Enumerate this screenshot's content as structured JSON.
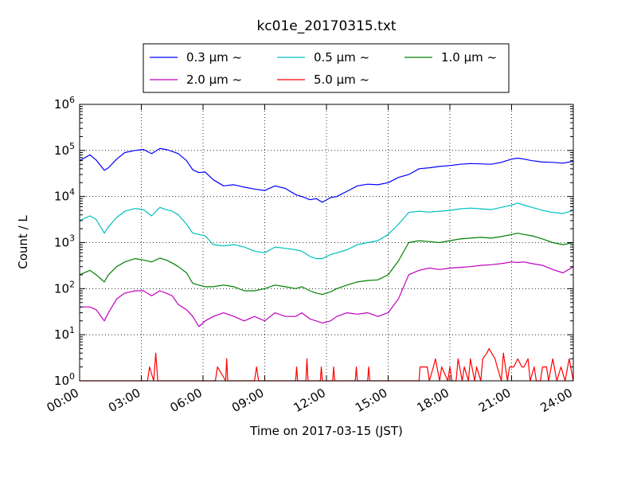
{
  "chart_data": {
    "type": "line",
    "title": "kc01e_20170315.txt",
    "xlabel": "Time on 2017-03-15 (JST)",
    "ylabel": "Count / L",
    "yscale": "log",
    "ylim": [
      1,
      1000000
    ],
    "xlim": [
      0,
      24
    ],
    "grid": true,
    "legend_position": "top-center",
    "x_tick_labels": [
      "00:00",
      "03:00",
      "06:00",
      "09:00",
      "12:00",
      "15:00",
      "18:00",
      "21:00",
      "24:00"
    ],
    "y_tick_labels": [
      {
        "base": "10",
        "exp": "0"
      },
      {
        "base": "10",
        "exp": "1"
      },
      {
        "base": "10",
        "exp": "2"
      },
      {
        "base": "10",
        "exp": "3"
      },
      {
        "base": "10",
        "exp": "4"
      },
      {
        "base": "10",
        "exp": "5"
      },
      {
        "base": "10",
        "exp": "6"
      }
    ],
    "series": [
      {
        "name": "0.3 µm ~",
        "color": "#0000ff",
        "x": [
          0,
          0.5,
          0.8,
          1.2,
          1.4,
          1.8,
          2.2,
          2.7,
          3.1,
          3.5,
          3.9,
          4.2,
          4.5,
          4.8,
          5.2,
          5.5,
          5.8,
          6.1,
          6.5,
          7.0,
          7.5,
          8.0,
          8.5,
          9.0,
          9.5,
          10.0,
          10.5,
          10.8,
          11.2,
          11.5,
          11.8,
          12.2,
          12.5,
          13.0,
          13.5,
          14.0,
          14.5,
          15.0,
          15.5,
          16.0,
          16.5,
          17.0,
          17.5,
          18.0,
          18.5,
          19.0,
          19.5,
          20.0,
          20.5,
          21.0,
          21.3,
          21.6,
          22.0,
          22.5,
          23.0,
          23.5,
          24.0
        ],
        "y": [
          60000,
          80000,
          62000,
          37000,
          42000,
          65000,
          90000,
          100000,
          105000,
          85000,
          110000,
          105000,
          95000,
          85000,
          60000,
          38000,
          33000,
          34000,
          23000,
          17000,
          18000,
          16000,
          14500,
          13500,
          17000,
          15000,
          11000,
          10000,
          8500,
          9000,
          7500,
          9500,
          10000,
          13000,
          17000,
          18500,
          18000,
          20000,
          26000,
          30000,
          40000,
          42000,
          45000,
          47000,
          50000,
          52000,
          51000,
          50000,
          55000,
          65000,
          68000,
          65000,
          60000,
          56000,
          55000,
          53000,
          58000
        ]
      },
      {
        "name": "0.5 µm ~",
        "color": "#00bfbf",
        "x": [
          0,
          0.5,
          0.8,
          1.2,
          1.4,
          1.8,
          2.2,
          2.7,
          3.1,
          3.5,
          3.9,
          4.2,
          4.5,
          4.8,
          5.2,
          5.5,
          5.8,
          6.1,
          6.5,
          7.0,
          7.5,
          8.0,
          8.5,
          9.0,
          9.5,
          10.0,
          10.5,
          10.8,
          11.2,
          11.5,
          11.8,
          12.2,
          12.5,
          13.0,
          13.5,
          14.0,
          14.5,
          15.0,
          15.5,
          16.0,
          16.5,
          17.0,
          17.5,
          18.0,
          18.5,
          19.0,
          19.5,
          20.0,
          20.5,
          21.0,
          21.3,
          21.6,
          22.0,
          22.5,
          23.0,
          23.5,
          24.0
        ],
        "y": [
          3000,
          3800,
          3200,
          1600,
          2200,
          3500,
          4800,
          5500,
          5200,
          3800,
          5800,
          5200,
          4800,
          4000,
          2500,
          1600,
          1500,
          1400,
          900,
          850,
          900,
          800,
          650,
          600,
          800,
          750,
          700,
          650,
          500,
          450,
          450,
          550,
          600,
          700,
          900,
          1000,
          1100,
          1500,
          2500,
          4500,
          4800,
          4600,
          4800,
          5000,
          5400,
          5600,
          5400,
          5200,
          5800,
          6500,
          7200,
          6500,
          5800,
          5000,
          4500,
          4300,
          5000
        ]
      },
      {
        "name": "1.0 µm ~",
        "color": "#008000",
        "x": [
          0,
          0.5,
          0.8,
          1.2,
          1.4,
          1.8,
          2.2,
          2.7,
          3.1,
          3.5,
          3.9,
          4.2,
          4.5,
          4.8,
          5.2,
          5.5,
          5.8,
          6.1,
          6.5,
          7.0,
          7.5,
          8.0,
          8.5,
          9.0,
          9.5,
          10.0,
          10.5,
          10.8,
          11.2,
          11.5,
          11.8,
          12.2,
          12.5,
          13.0,
          13.5,
          14.0,
          14.5,
          15.0,
          15.5,
          16.0,
          16.5,
          17.0,
          17.5,
          18.0,
          18.5,
          19.0,
          19.5,
          20.0,
          20.5,
          21.0,
          21.3,
          21.6,
          22.0,
          22.5,
          23.0,
          23.5,
          24.0
        ],
        "y": [
          200,
          250,
          200,
          140,
          200,
          300,
          380,
          450,
          420,
          380,
          460,
          420,
          360,
          300,
          220,
          130,
          120,
          110,
          110,
          120,
          110,
          90,
          90,
          100,
          120,
          110,
          100,
          110,
          90,
          80,
          75,
          85,
          100,
          120,
          140,
          150,
          155,
          200,
          400,
          1000,
          1100,
          1050,
          1000,
          1100,
          1200,
          1250,
          1300,
          1250,
          1350,
          1500,
          1600,
          1500,
          1400,
          1200,
          1000,
          900,
          1000
        ]
      },
      {
        "name": "2.0 µm ~",
        "color": "#bf00bf",
        "x": [
          0,
          0.5,
          0.8,
          1.2,
          1.4,
          1.8,
          2.2,
          2.7,
          3.1,
          3.5,
          3.9,
          4.2,
          4.5,
          4.8,
          5.2,
          5.5,
          5.8,
          6.1,
          6.5,
          7.0,
          7.5,
          8.0,
          8.5,
          9.0,
          9.5,
          10.0,
          10.5,
          10.8,
          11.2,
          11.5,
          11.8,
          12.2,
          12.5,
          13.0,
          13.5,
          14.0,
          14.5,
          15.0,
          15.5,
          16.0,
          16.5,
          17.0,
          17.5,
          18.0,
          18.5,
          19.0,
          19.5,
          20.0,
          20.5,
          21.0,
          21.3,
          21.6,
          22.0,
          22.5,
          23.0,
          23.5,
          24.0
        ],
        "y": [
          40,
          40,
          35,
          20,
          30,
          60,
          80,
          90,
          90,
          70,
          90,
          80,
          70,
          45,
          35,
          25,
          15,
          20,
          25,
          30,
          25,
          20,
          25,
          20,
          30,
          25,
          25,
          30,
          22,
          20,
          18,
          20,
          25,
          30,
          28,
          30,
          25,
          30,
          60,
          200,
          250,
          280,
          260,
          280,
          290,
          300,
          320,
          330,
          350,
          380,
          370,
          380,
          350,
          320,
          260,
          220,
          300
        ]
      },
      {
        "name": "5.0 µm ~",
        "color": "#ff0000",
        "x": [
          0,
          3.2,
          3.3,
          3.4,
          3.6,
          3.7,
          3.8,
          6.5,
          6.6,
          6.7,
          7.1,
          7.15,
          7.2,
          8.5,
          8.6,
          8.7,
          10.5,
          10.55,
          10.6,
          10.7,
          10.8,
          11.0,
          11.05,
          11.1,
          11.7,
          11.75,
          11.8,
          12.3,
          12.35,
          12.4,
          13.4,
          13.45,
          13.5,
          14.0,
          14.05,
          14.1,
          16.5,
          16.55,
          16.6,
          16.9,
          17.0,
          17.2,
          17.3,
          17.5,
          17.6,
          17.9,
          18.0,
          18.1,
          18.3,
          18.4,
          18.6,
          18.7,
          18.9,
          19.0,
          19.2,
          19.3,
          19.5,
          19.6,
          19.8,
          19.9,
          20.2,
          20.3,
          20.5,
          20.6,
          20.8,
          20.9,
          21.1,
          21.3,
          21.5,
          21.6,
          21.8,
          21.9,
          22.1,
          22.2,
          22.4,
          22.5,
          22.7,
          22.8,
          23.0,
          23.2,
          23.4,
          23.6,
          23.8,
          24.0
        ],
        "y": [
          1,
          1,
          1,
          2,
          1,
          4,
          1,
          1,
          1,
          2,
          1,
          3,
          1,
          1,
          2,
          1,
          1,
          2,
          1,
          1,
          1,
          1,
          3,
          1,
          1,
          2,
          1,
          1,
          2,
          1,
          1,
          2,
          1,
          1,
          2,
          1,
          1,
          2,
          2,
          2,
          1,
          2,
          3,
          1,
          2,
          1,
          2,
          1,
          1,
          3,
          1,
          2,
          1,
          3,
          1,
          2,
          1,
          3,
          4,
          5,
          3,
          2,
          1,
          4,
          1,
          2,
          2,
          3,
          2,
          2,
          3,
          1,
          2,
          1,
          1,
          2,
          2,
          1,
          3,
          1,
          2,
          1,
          3,
          1
        ]
      }
    ]
  }
}
